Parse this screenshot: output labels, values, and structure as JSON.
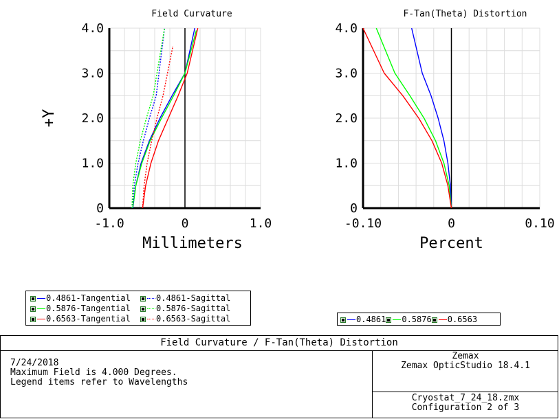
{
  "chart_data": [
    {
      "type": "line",
      "title": "Field Curvature",
      "xlabel": "Millimeters",
      "ylabel": "+Y",
      "xlim": [
        -1.0,
        1.0
      ],
      "ylim": [
        0,
        4.0
      ],
      "xticks": [
        "-1.0",
        "0",
        "1.0"
      ],
      "yticks": [
        "0",
        "1.0",
        "2.0",
        "3.0",
        "4.0"
      ],
      "grid": true,
      "series": [
        {
          "name": "0.4861-Tangential",
          "color": "#0000ff",
          "dash": "solid",
          "x": [
            -0.69,
            -0.65,
            -0.58,
            -0.47,
            -0.33,
            -0.17,
            0.0,
            0.13
          ],
          "y": [
            0,
            0.5,
            1.0,
            1.5,
            2.0,
            2.5,
            3.0,
            4.0
          ]
        },
        {
          "name": "0.5876-Tangential",
          "color": "#00ff00",
          "dash": "solid",
          "x": [
            -0.69,
            -0.65,
            -0.57,
            -0.46,
            -0.31,
            -0.15,
            0.0,
            0.15
          ],
          "y": [
            0,
            0.5,
            1.0,
            1.5,
            2.0,
            2.5,
            3.0,
            3.95
          ]
        },
        {
          "name": "0.6563-Tangential",
          "color": "#ff0000",
          "dash": "solid",
          "x": [
            -0.56,
            -0.52,
            -0.45,
            -0.35,
            -0.22,
            -0.09,
            0.03,
            0.17
          ],
          "y": [
            0,
            0.5,
            1.0,
            1.5,
            2.0,
            2.5,
            3.0,
            4.0
          ]
        },
        {
          "name": "0.4861-Sagittal",
          "color": "#0000ff",
          "dash": "dot",
          "x": [
            -0.69,
            -0.67,
            -0.62,
            -0.55,
            -0.47,
            -0.38,
            -0.27
          ],
          "y": [
            0,
            0.5,
            1.0,
            1.5,
            2.0,
            2.5,
            4.0
          ]
        },
        {
          "name": "0.5876-Sagittal",
          "color": "#00ff00",
          "dash": "dot",
          "x": [
            -0.7,
            -0.69,
            -0.65,
            -0.59,
            -0.51,
            -0.42,
            -0.27
          ],
          "y": [
            0,
            0.5,
            1.0,
            1.5,
            2.0,
            2.5,
            4.0
          ]
        },
        {
          "name": "0.6563-Sagittal",
          "color": "#ff0000",
          "dash": "dot",
          "x": [
            -0.56,
            -0.54,
            -0.5,
            -0.44,
            -0.37,
            -0.29,
            -0.16
          ],
          "y": [
            0,
            0.5,
            1.0,
            1.5,
            2.0,
            2.5,
            3.6
          ]
        }
      ]
    },
    {
      "type": "line",
      "title": "F-Tan(Theta) Distortion",
      "xlabel": "Percent",
      "ylabel": "",
      "xlim": [
        -0.1,
        0.1
      ],
      "ylim": [
        0,
        4.0
      ],
      "xticks": [
        "-0.10",
        "0",
        "0.10"
      ],
      "yticks": [
        "0",
        "1.0",
        "2.0",
        "3.0",
        "4.0"
      ],
      "grid": true,
      "series": [
        {
          "name": "0.4861",
          "color": "#0000ff",
          "dash": "solid",
          "x": [
            0,
            -0.0012,
            -0.004,
            -0.0085,
            -0.015,
            -0.023,
            -0.033,
            -0.045
          ],
          "y": [
            0,
            0.5,
            1.0,
            1.5,
            2.0,
            2.5,
            3.0,
            4.0
          ]
        },
        {
          "name": "0.5876",
          "color": "#00ff00",
          "dash": "solid",
          "x": [
            0,
            -0.0025,
            -0.0085,
            -0.018,
            -0.031,
            -0.047,
            -0.064,
            -0.085
          ],
          "y": [
            0,
            0.5,
            1.0,
            1.5,
            2.0,
            2.5,
            3.0,
            4.0
          ]
        },
        {
          "name": "0.6563",
          "color": "#ff0000",
          "dash": "solid",
          "x": [
            0,
            -0.004,
            -0.011,
            -0.022,
            -0.037,
            -0.055,
            -0.076,
            -0.1
          ],
          "y": [
            0,
            0.5,
            1.0,
            1.5,
            2.0,
            2.5,
            3.0,
            4.0
          ]
        }
      ]
    }
  ],
  "legend_left": [
    {
      "label": "0.4861-Tangential",
      "color": "#0000ff",
      "dash": "solid"
    },
    {
      "label": "0.4861-Sagittal",
      "color": "#0000ff",
      "dash": "dotted"
    },
    {
      "label": "0.5876-Tangential",
      "color": "#00ff00",
      "dash": "solid"
    },
    {
      "label": "0.5876-Sagittal",
      "color": "#00ff00",
      "dash": "dotted"
    },
    {
      "label": "0.6563-Tangential",
      "color": "#ff0000",
      "dash": "solid"
    },
    {
      "label": "0.6563-Sagittal",
      "color": "#ff0000",
      "dash": "dotted"
    }
  ],
  "legend_right": [
    {
      "label": "0.4861",
      "color": "#0000ff"
    },
    {
      "label": "0.5876",
      "color": "#00ff00"
    },
    {
      "label": "0.6563",
      "color": "#ff0000"
    }
  ],
  "footer": {
    "title": "Field Curvature / F-Tan(Theta) Distortion",
    "date": "7/24/2018",
    "max_field": "Maximum Field is 4.000 Degrees.",
    "legend_note": "Legend items refer to Wavelengths",
    "company": "Zemax",
    "software": "Zemax OpticStudio 18.4.1",
    "file": "Cryostat_7_24_18.zmx",
    "configuration": "Configuration 2 of 3"
  }
}
